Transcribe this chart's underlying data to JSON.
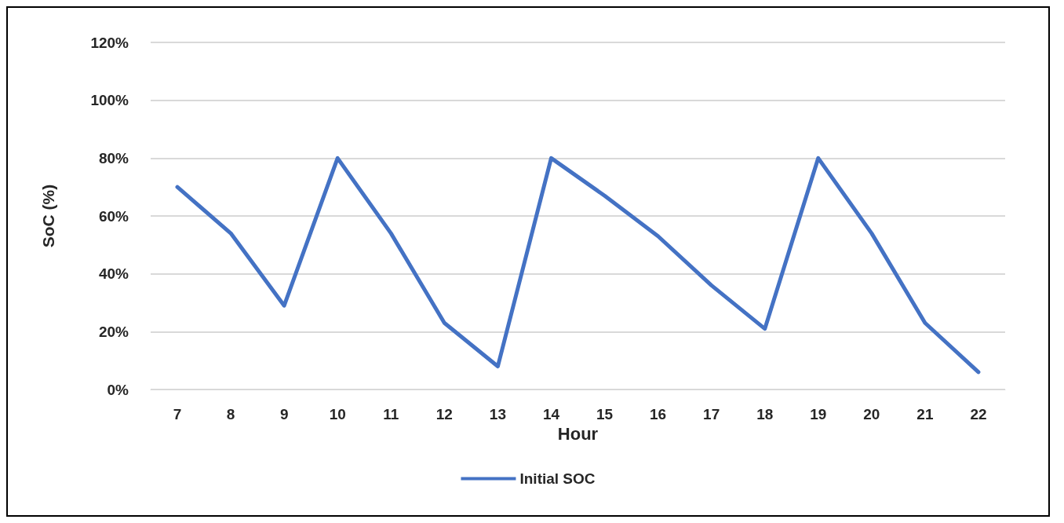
{
  "chart_data": {
    "type": "line",
    "xlabel": "Hour",
    "ylabel": "SoC (%)",
    "categories": [
      "7",
      "8",
      "9",
      "10",
      "11",
      "12",
      "13",
      "14",
      "15",
      "16",
      "17",
      "18",
      "19",
      "20",
      "21",
      "22"
    ],
    "series": [
      {
        "name": "Initial SOC",
        "color": "#4472c4",
        "values": [
          70,
          54,
          29,
          80,
          54,
          23,
          8,
          80,
          67,
          53,
          36,
          21,
          80,
          54,
          23,
          6
        ]
      }
    ],
    "ylim": [
      0,
      120
    ],
    "yticks": [
      {
        "value": 0,
        "label": "0%"
      },
      {
        "value": 20,
        "label": "20%"
      },
      {
        "value": 40,
        "label": "40%"
      },
      {
        "value": 60,
        "label": "60%"
      },
      {
        "value": 80,
        "label": "80%"
      },
      {
        "value": 100,
        "label": "100%"
      },
      {
        "value": 120,
        "label": "120%"
      }
    ],
    "grid": "y",
    "legend": "bottom",
    "marker": "none",
    "line_style": "solid"
  }
}
